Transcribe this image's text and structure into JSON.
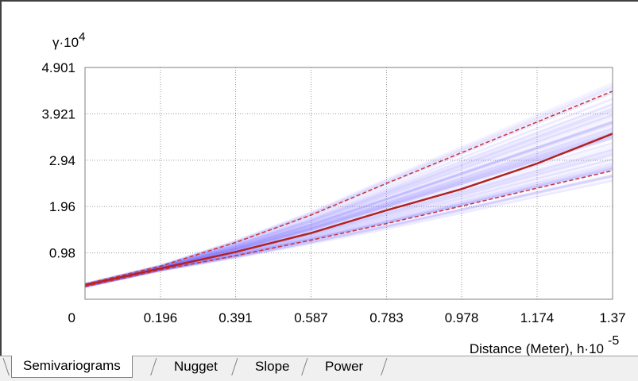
{
  "chart_data": {
    "type": "line",
    "y_axis_title": "γ·10",
    "y_axis_exponent": "4",
    "x_axis_title": "Distance (Meter), h·10",
    "x_axis_exponent": "-5",
    "y_tick_labels": [
      "0",
      "0.98",
      "1.96",
      "2.94",
      "3.921",
      "4.901"
    ],
    "x_tick_labels": [
      "0.196",
      "0.391",
      "0.587",
      "0.783",
      "0.978",
      "1.174",
      "1.37"
    ],
    "xlim": [
      0,
      1.37
    ],
    "ylim": [
      0,
      4.901
    ],
    "grid": true,
    "series": [
      {
        "role": "median",
        "color": "#b22222",
        "style": "solid",
        "x": [
          0,
          0.196,
          0.391,
          0.587,
          0.783,
          0.978,
          1.174,
          1.37
        ],
        "y": [
          0.3,
          0.65,
          1.0,
          1.4,
          1.88,
          2.33,
          2.87,
          3.5
        ]
      },
      {
        "role": "upper",
        "color": "#cc3333",
        "style": "dashed",
        "x": [
          0,
          0.196,
          0.391,
          0.587,
          0.783,
          0.978,
          1.174,
          1.37
        ],
        "y": [
          0.32,
          0.7,
          1.2,
          1.78,
          2.45,
          3.1,
          3.75,
          4.4
        ]
      },
      {
        "role": "lower",
        "color": "#cc3333",
        "style": "dashed",
        "x": [
          0,
          0.196,
          0.391,
          0.587,
          0.783,
          0.978,
          1.174,
          1.37
        ],
        "y": [
          0.27,
          0.62,
          0.92,
          1.25,
          1.6,
          1.97,
          2.35,
          2.72
        ]
      }
    ],
    "ensemble_color": "#7b6bff"
  },
  "tabs": [
    {
      "label": "Semivariograms",
      "active": true
    },
    {
      "label": "Nugget",
      "active": false
    },
    {
      "label": "Slope",
      "active": false
    },
    {
      "label": "Power",
      "active": false
    }
  ]
}
